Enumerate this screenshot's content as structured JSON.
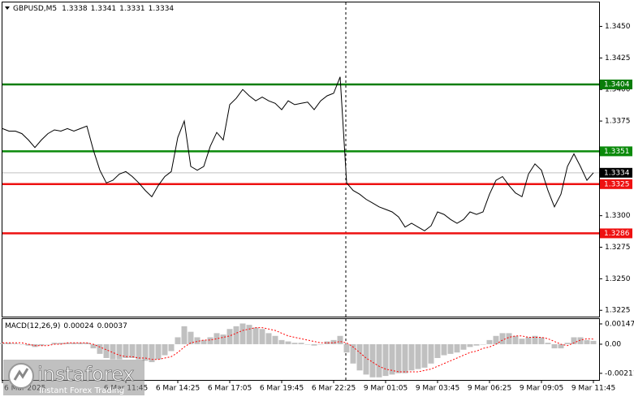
{
  "chart_data": [
    {
      "type": "line",
      "title": "GBPUSD,M5",
      "ohlc": [
        1.3338,
        1.3341,
        1.3331,
        1.3334
      ],
      "color": "#000000",
      "values": [
        1.3369,
        1.3367,
        1.3367,
        1.3365,
        1.336,
        1.3354,
        1.336,
        1.3365,
        1.3368,
        1.3367,
        1.3369,
        1.3367,
        1.3369,
        1.3371,
        1.3352,
        1.3336,
        1.3326,
        1.3328,
        1.3333,
        1.3335,
        1.3331,
        1.3326,
        1.332,
        1.3315,
        1.3324,
        1.3331,
        1.3335,
        1.3362,
        1.3375,
        1.3339,
        1.3336,
        1.3339,
        1.3355,
        1.3366,
        1.336,
        1.3388,
        1.3393,
        1.34,
        1.3395,
        1.3391,
        1.3394,
        1.3391,
        1.3389,
        1.3384,
        1.3391,
        1.3388,
        1.3389,
        1.339,
        1.3384,
        1.3391,
        1.3395,
        1.3397,
        1.341,
        1.3326,
        1.332,
        1.3317,
        1.3313,
        1.331,
        1.3307,
        1.3305,
        1.3303,
        1.3299,
        1.3291,
        1.3294,
        1.3291,
        1.3288,
        1.3292,
        1.3303,
        1.3301,
        1.3297,
        1.3294,
        1.3297,
        1.3303,
        1.3301,
        1.3303,
        1.3317,
        1.3328,
        1.3331,
        1.3324,
        1.3318,
        1.3315,
        1.3333,
        1.3341,
        1.3336,
        1.332,
        1.3307,
        1.3317,
        1.3339,
        1.3349,
        1.3339,
        1.3328,
        1.3334
      ],
      "ylim": [
        1.322,
        1.3469
      ],
      "yticks": [
        {
          "value": 1.345,
          "label": "1.3450"
        },
        1.3425,
        {
          "value": 1.34,
          "label": "1.3400"
        },
        1.3375,
        {
          "value": 1.33,
          "label": "1.3300"
        },
        1.3275,
        {
          "value": 1.325,
          "label": "1.3250"
        },
        1.3225
      ],
      "levels": [
        {
          "value": 1.3404,
          "color": "#0a7d0a"
        },
        {
          "value": 1.3351,
          "color": "#0a8a0a"
        },
        {
          "value": 1.3325,
          "color": "#ee1111"
        },
        {
          "value": 1.3286,
          "color": "#ee1111"
        }
      ],
      "xticks": [
        {
          "value": 0,
          "label": "6 Mar 2025"
        },
        {
          "value": 19,
          "label": "6 Mar 11:45"
        },
        {
          "value": 27,
          "label": "6 Mar 14:25"
        },
        {
          "value": 35,
          "label": "6 Mar 17:05"
        },
        {
          "value": 43,
          "label": "6 Mar 19:45"
        },
        {
          "value": 51,
          "label": "6 Mar 22:25"
        },
        {
          "value": 59,
          "label": "9 Mar 01:05"
        },
        {
          "value": 67,
          "label": "9 Mar 03:45"
        },
        {
          "value": 75,
          "label": "9 Mar 06:25"
        },
        {
          "value": 83,
          "label": "9 Mar 09:05"
        },
        {
          "value": 91,
          "label": "9 Mar 11:45"
        }
      ]
    },
    {
      "type": "macd",
      "title": "MACD(12,26,9)",
      "series": [
        {
          "color": "#c0c0c0",
          "values": [
            0.0001,
            0.0001,
            5e-05,
            0,
            -0.0001,
            -0.0002,
            -0.0001,
            0,
            0.0001,
            0.0001,
            0.0001,
            0.0001,
            0.0001,
            0.0001,
            -0.0003,
            -0.0007,
            -0.001,
            -0.0011,
            -0.0011,
            -0.001,
            -0.001,
            -0.0011,
            -0.0012,
            -0.0013,
            -0.0011,
            -0.0008,
            -0.0005,
            0.0005,
            0.0013,
            0.0009,
            0.0005,
            0.0003,
            0.0005,
            0.0008,
            0.0007,
            0.0011,
            0.0013,
            0.0015,
            0.0014,
            0.0012,
            0.0011,
            0.0008,
            0.0006,
            0.0003,
            0.0002,
            0.0001,
            0.0001,
            0,
            -0.0001,
            0,
            0.0002,
            0.0003,
            0.0006,
            -0.0006,
            -0.0014,
            -0.0019,
            -0.0022,
            -0.0024,
            -0.0024,
            -0.0023,
            -0.0022,
            -0.0021,
            -0.0021,
            -0.0019,
            -0.0018,
            -0.0017,
            -0.0014,
            -0.001,
            -0.0008,
            -0.0007,
            -0.0006,
            -0.0004,
            -0.0002,
            -0.0001,
            0,
            0.0003,
            0.0006,
            0.0008,
            0.0008,
            0.0006,
            0.0004,
            0.0005,
            0.0006,
            0.0005,
            0.0001,
            -0.0003,
            -0.0003,
            0.0001,
            0.0005,
            0.0005,
            0.0003,
            0.00024
          ]
        },
        {
          "color": "#ff0000",
          "values": [
            0.0001,
            0.0001,
            0.0001,
            0.0001,
            0,
            -0.0001,
            -0.0001,
            -0.0001,
            0,
            0,
            0.0001,
            0.0001,
            0.0001,
            0.0001,
            0,
            -0.0002,
            -0.0004,
            -0.0006,
            -0.0008,
            -0.0009,
            -0.0009,
            -0.001,
            -0.001,
            -0.0011,
            -0.0011,
            -0.001,
            -0.0009,
            -0.0006,
            -0.0002,
            0.0001,
            0.0002,
            0.0003,
            0.0003,
            0.0004,
            0.0005,
            0.0006,
            0.0008,
            0.001,
            0.0011,
            0.0012,
            0.0012,
            0.0011,
            0.001,
            0.0008,
            0.0006,
            0.0005,
            0.0004,
            0.0003,
            0.0002,
            0.0001,
            0.0001,
            0.0001,
            0.0002,
            0.0001,
            -0.0002,
            -0.0006,
            -0.001,
            -0.0013,
            -0.0016,
            -0.0018,
            -0.0019,
            -0.002,
            -0.002,
            -0.002,
            -0.002,
            -0.0019,
            -0.0018,
            -0.0016,
            -0.0014,
            -0.0012,
            -0.001,
            -0.0008,
            -0.0006,
            -0.0005,
            -0.0003,
            -0.0002,
            0,
            0.0003,
            0.0005,
            0.0006,
            0.0006,
            0.0005,
            0.0005,
            0.0005,
            0.0004,
            0.0002,
            0,
            -0.0001,
            0.0001,
            0.0003,
            0.0004,
            0.00037
          ]
        }
      ],
      "ylim": [
        -0.00259,
        0.00188
      ],
      "yticks": [
        0.00147,
        {
          "value": 0,
          "label": "0.00"
        },
        -0.00211
      ]
    }
  ],
  "logo": {
    "name": "instaforex",
    "tagline": "Instant Forex Trading"
  }
}
